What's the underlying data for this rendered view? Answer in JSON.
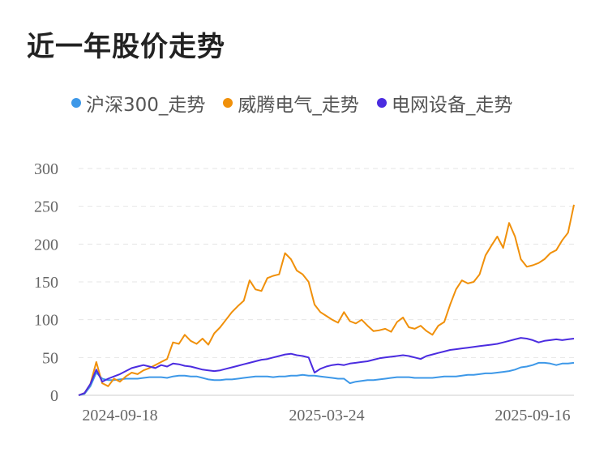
{
  "chart_data": {
    "type": "line",
    "title": "近一年股价走势",
    "ylim": [
      0,
      300
    ],
    "yticks": [
      0,
      50,
      100,
      150,
      200,
      250,
      300
    ],
    "xtick_labels": [
      "2024-09-18",
      "2025-03-24",
      "2025-09-16"
    ],
    "grid": "horizontal dashed",
    "legend_position": "top",
    "series": [
      {
        "name": "沪深300_走势",
        "color": "#3d98e8",
        "values": [
          0,
          2,
          12,
          30,
          22,
          20,
          20,
          21,
          22,
          22,
          22,
          23,
          24,
          24,
          24,
          23,
          25,
          26,
          26,
          25,
          25,
          23,
          21,
          20,
          20,
          21,
          21,
          22,
          23,
          24,
          25,
          25,
          25,
          24,
          25,
          25,
          26,
          26,
          27,
          26,
          26,
          25,
          24,
          23,
          22,
          22,
          16,
          18,
          19,
          20,
          20,
          21,
          22,
          23,
          24,
          24,
          24,
          23,
          23,
          23,
          23,
          24,
          25,
          25,
          25,
          26,
          27,
          27,
          28,
          29,
          29,
          30,
          31,
          32,
          34,
          37,
          38,
          40,
          43,
          43,
          42,
          40,
          42,
          42,
          43
        ]
      },
      {
        "name": "威腾电气_走势",
        "color": "#f0900a",
        "values": [
          0,
          3,
          15,
          44,
          16,
          12,
          22,
          18,
          25,
          30,
          28,
          33,
          36,
          40,
          44,
          48,
          70,
          68,
          80,
          72,
          68,
          75,
          67,
          82,
          90,
          100,
          110,
          118,
          125,
          152,
          140,
          138,
          155,
          158,
          160,
          188,
          180,
          165,
          160,
          150,
          120,
          110,
          105,
          100,
          96,
          110,
          98,
          95,
          100,
          92,
          85,
          86,
          88,
          84,
          97,
          103,
          90,
          88,
          92,
          85,
          80,
          92,
          97,
          120,
          140,
          152,
          148,
          150,
          160,
          185,
          198,
          210,
          195,
          228,
          210,
          180,
          170,
          172,
          175,
          180,
          188,
          192,
          205,
          215,
          252
        ]
      },
      {
        "name": "电网设备_走势",
        "color": "#4b2ce0",
        "values": [
          0,
          3,
          15,
          34,
          18,
          22,
          25,
          28,
          32,
          36,
          38,
          40,
          38,
          36,
          40,
          38,
          42,
          41,
          39,
          38,
          36,
          34,
          33,
          32,
          33,
          35,
          37,
          39,
          41,
          43,
          45,
          47,
          48,
          50,
          52,
          54,
          55,
          53,
          52,
          50,
          30,
          35,
          38,
          40,
          41,
          40,
          42,
          43,
          44,
          45,
          47,
          49,
          50,
          51,
          52,
          53,
          52,
          50,
          48,
          52,
          54,
          56,
          58,
          60,
          61,
          62,
          63,
          64,
          65,
          66,
          67,
          68,
          70,
          72,
          74,
          76,
          75,
          73,
          70,
          72,
          73,
          74,
          73,
          74,
          75
        ]
      }
    ]
  }
}
